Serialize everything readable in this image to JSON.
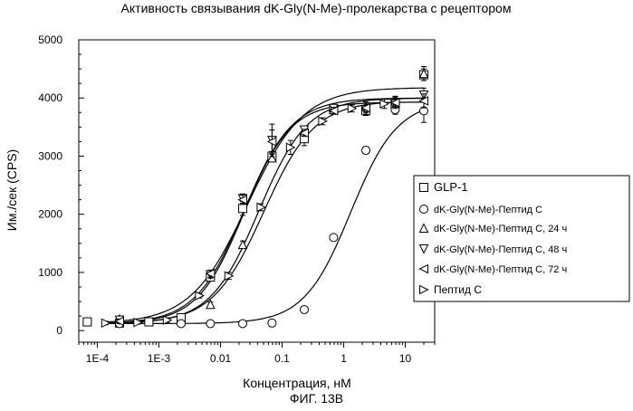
{
  "figure_label": "ФИГ. 13В",
  "chart_data": {
    "type": "scatter",
    "title": "Активность связывания dK-Gly(N-Me)-пролекарства с рецептором",
    "xlabel": "Концентрация, нМ",
    "ylabel": "Им./сек (CPS)",
    "xscale": "log",
    "xlim": [
      5e-05,
      30
    ],
    "ylim": [
      -200,
      5000
    ],
    "x_ticks": [
      0.0001,
      0.001,
      0.01,
      0.1,
      1,
      10
    ],
    "x_tick_labels": [
      "1E-4",
      "1E-3",
      "0.01",
      "0.1",
      "1",
      "10"
    ],
    "y_ticks": [
      0,
      1000,
      2000,
      3000,
      4000,
      5000
    ],
    "y_tick_labels": [
      "0",
      "1000",
      "2000",
      "3000",
      "4000",
      "5000"
    ],
    "legend_position": "right",
    "series": [
      {
        "name": "GLP-1",
        "marker": "square",
        "x": [
          6.86e-05,
          0.000229,
          0.000686,
          0.00229,
          0.00686,
          0.0229,
          0.0686,
          0.229,
          0.686,
          2.29,
          6.86,
          20
        ],
        "y": [
          150,
          130,
          150,
          220,
          920,
          2100,
          3000,
          3300,
          3800,
          3780,
          3900,
          4400
        ],
        "err": [
          40,
          40,
          40,
          40,
          60,
          120,
          80,
          120,
          60,
          80,
          120,
          100
        ],
        "fit": {
          "bottom": 120,
          "top": 3930,
          "ec50": 0.024,
          "hill": 1.15
        }
      },
      {
        "name": "dK-Gly(N-Me)-Пептид С",
        "marker": "circle",
        "x": [
          0.000229,
          0.00229,
          0.00686,
          0.0229,
          0.0686,
          0.229,
          0.686,
          2.29,
          6.86,
          20
        ],
        "y": [
          120,
          120,
          120,
          120,
          130,
          360,
          1600,
          3100,
          3800,
          3780
        ],
        "err": [
          30,
          30,
          30,
          30,
          30,
          40,
          40,
          60,
          80,
          200
        ],
        "fit": {
          "bottom": 120,
          "top": 3950,
          "ec50": 1.3,
          "hill": 1.15
        }
      },
      {
        "name": "dK-Gly(N-Me)-Пептид С, 24 ч",
        "marker": "triangle-up",
        "x": [
          0.000229,
          0.00686,
          0.0229,
          0.0686,
          0.229,
          0.686,
          2.29,
          6.86,
          20
        ],
        "y": [
          200,
          450,
          1480,
          2970,
          3420,
          3830,
          3850,
          3950,
          4420
        ],
        "err": [
          40,
          40,
          60,
          60,
          60,
          60,
          80,
          80,
          120
        ],
        "fit": {
          "bottom": 120,
          "top": 4000,
          "ec50": 0.042,
          "hill": 1.1
        }
      },
      {
        "name": "dK-Gly(N-Me)-Пептид С, 48 ч",
        "marker": "triangle-down",
        "x": [
          0.000229,
          0.00686,
          0.0229,
          0.0686,
          0.229,
          0.686,
          2.29,
          6.86,
          20
        ],
        "y": [
          180,
          960,
          2270,
          3270,
          3450,
          3820,
          3800,
          3900,
          4050
        ],
        "err": [
          40,
          60,
          80,
          280,
          60,
          60,
          80,
          80,
          120
        ],
        "fit": {
          "bottom": 120,
          "top": 4180,
          "ec50": 0.027,
          "hill": 0.95
        }
      },
      {
        "name": "dK-Gly(N-Me)-Пептид С, 72 ч",
        "marker": "triangle-left",
        "x": [
          0.000229,
          0.00686,
          0.0229,
          0.0686,
          0.229,
          0.686,
          2.29,
          6.86,
          20
        ],
        "y": [
          160,
          980,
          2250,
          3250,
          3400,
          3780,
          3830,
          3920,
          3950
        ],
        "err": [
          40,
          60,
          80,
          200,
          60,
          60,
          80,
          80,
          120
        ],
        "fit": {
          "bottom": 120,
          "top": 4000,
          "ec50": 0.024,
          "hill": 1.1
        }
      },
      {
        "name": "Пептид С",
        "marker": "triangle-right",
        "x": [
          0.000137,
          0.000457,
          0.00137,
          0.00457,
          0.0137,
          0.0457,
          0.137,
          0.457,
          1.37,
          4.57
        ],
        "y": [
          130,
          140,
          180,
          600,
          940,
          2120,
          3150,
          3600,
          3820,
          3900
        ],
        "err": [
          30,
          30,
          40,
          40,
          60,
          60,
          120,
          60,
          60,
          80
        ],
        "fit": {
          "bottom": 120,
          "top": 3950,
          "ec50": 0.05,
          "hill": 1.05
        }
      }
    ]
  }
}
